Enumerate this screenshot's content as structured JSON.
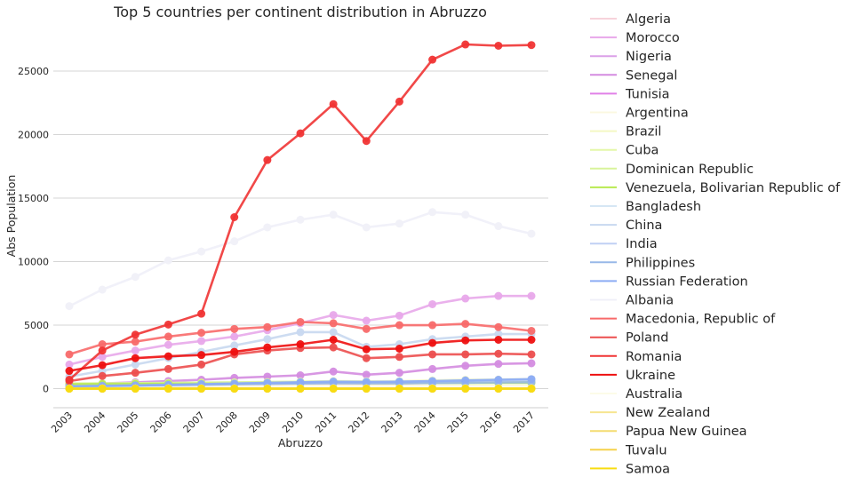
{
  "chart_data": {
    "type": "line",
    "title": "Top 5 countries per continent distribution in Abruzzo",
    "xlabel": "Abruzzo",
    "ylabel": "Abs Population",
    "categories": [
      "2003",
      "2004",
      "2005",
      "2006",
      "2007",
      "2008",
      "2009",
      "2010",
      "2011",
      "2012",
      "2013",
      "2014",
      "2015",
      "2016",
      "2017"
    ],
    "ylim": [
      -1500,
      28500
    ],
    "yticks": [
      0,
      5000,
      10000,
      15000,
      20000,
      25000
    ],
    "grid": "horizontal",
    "legend_position": "right",
    "series": [
      {
        "name": "Algeria",
        "color": "#f7d3db",
        "values": [
          250,
          270,
          290,
          300,
          320,
          350,
          380,
          400,
          450,
          420,
          430,
          460,
          480,
          500,
          520
        ]
      },
      {
        "name": "Morocco",
        "color": "#e8a8ea",
        "values": [
          1900,
          2500,
          3000,
          3450,
          3750,
          4100,
          4600,
          5150,
          5800,
          5350,
          5750,
          6650,
          7100,
          7300,
          7300
        ]
      },
      {
        "name": "Nigeria",
        "color": "#dca0e8",
        "values": [
          100,
          120,
          150,
          180,
          220,
          250,
          300,
          350,
          400,
          380,
          400,
          450,
          500,
          550,
          600
        ]
      },
      {
        "name": "Senegal",
        "color": "#d48ce0",
        "values": [
          300,
          400,
          500,
          600,
          700,
          850,
          950,
          1050,
          1350,
          1100,
          1250,
          1550,
          1800,
          1950,
          2000
        ]
      },
      {
        "name": "Tunisia",
        "color": "#e080e8",
        "values": [
          150,
          180,
          220,
          260,
          300,
          350,
          400,
          450,
          500,
          480,
          500,
          550,
          600,
          650,
          700
        ]
      },
      {
        "name": "Argentina",
        "color": "#fbf8e0",
        "values": [
          150,
          170,
          190,
          200,
          210,
          220,
          230,
          240,
          250,
          240,
          240,
          250,
          250,
          250,
          250
        ]
      },
      {
        "name": "Brazil",
        "color": "#f4f8c4",
        "values": [
          200,
          260,
          300,
          350,
          400,
          450,
          500,
          550,
          600,
          580,
          600,
          650,
          700,
          720,
          750
        ]
      },
      {
        "name": "Cuba",
        "color": "#e4f7a8",
        "values": [
          300,
          330,
          360,
          380,
          400,
          420,
          440,
          460,
          480,
          470,
          470,
          480,
          490,
          490,
          500
        ]
      },
      {
        "name": "Dominican Republic",
        "color": "#d8f39a",
        "values": [
          400,
          420,
          440,
          460,
          480,
          500,
          520,
          540,
          560,
          540,
          540,
          550,
          560,
          560,
          570
        ]
      },
      {
        "name": "Venezuela, Bolivarian Republic of",
        "color": "#b8ea50",
        "values": [
          350,
          360,
          370,
          380,
          390,
          400,
          420,
          440,
          460,
          440,
          440,
          450,
          450,
          460,
          460
        ]
      },
      {
        "name": "Bangladesh",
        "color": "#d6e6f4",
        "values": [
          100,
          150,
          200,
          250,
          300,
          350,
          400,
          450,
          500,
          480,
          500,
          550,
          600,
          650,
          700
        ]
      },
      {
        "name": "China",
        "color": "#c8d8f0",
        "values": [
          950,
          1400,
          1900,
          2400,
          2900,
          3400,
          3900,
          4450,
          4450,
          3300,
          3500,
          3900,
          4100,
          4300,
          4300
        ]
      },
      {
        "name": "India",
        "color": "#c0d0f4",
        "values": [
          150,
          200,
          250,
          300,
          350,
          400,
          450,
          500,
          550,
          520,
          540,
          580,
          620,
          660,
          700
        ]
      },
      {
        "name": "Philippines",
        "color": "#98b8e8",
        "values": [
          200,
          230,
          260,
          290,
          320,
          350,
          380,
          410,
          440,
          420,
          430,
          450,
          470,
          490,
          510
        ]
      },
      {
        "name": "Russian Federation",
        "color": "#8cacf4",
        "values": [
          150,
          200,
          250,
          300,
          350,
          400,
          450,
          500,
          550,
          530,
          550,
          600,
          650,
          700,
          750
        ]
      },
      {
        "name": "Albania",
        "color": "#f0f0f8",
        "values": [
          6500,
          7800,
          8800,
          10100,
          10800,
          11600,
          12700,
          13300,
          13700,
          12700,
          13000,
          13900,
          13700,
          12800,
          12200
        ]
      },
      {
        "name": "Macedonia, Republic of",
        "color": "#f86a6a",
        "values": [
          2700,
          3500,
          3700,
          4100,
          4400,
          4700,
          4850,
          5250,
          5150,
          4700,
          5000,
          5000,
          5100,
          4850,
          4550
        ]
      },
      {
        "name": "Poland",
        "color": "#ec4e4e",
        "values": [
          600,
          1000,
          1250,
          1550,
          1900,
          2700,
          3000,
          3200,
          3250,
          2400,
          2500,
          2700,
          2700,
          2750,
          2700
        ]
      },
      {
        "name": "Romania",
        "color": "#f03434",
        "values": [
          700,
          3000,
          4250,
          5050,
          5900,
          13500,
          18000,
          20100,
          22400,
          19500,
          22600,
          25900,
          27100,
          27000,
          27050
        ]
      },
      {
        "name": "Ukraine",
        "color": "#ee1010",
        "values": [
          1400,
          1850,
          2400,
          2550,
          2650,
          2900,
          3250,
          3500,
          3850,
          3100,
          3150,
          3600,
          3800,
          3850,
          3850
        ]
      },
      {
        "name": "Australia",
        "color": "#fcfbe8",
        "values": [
          20,
          22,
          24,
          26,
          28,
          30,
          32,
          34,
          36,
          34,
          34,
          36,
          36,
          36,
          36
        ]
      },
      {
        "name": "New Zealand",
        "color": "#f6e590",
        "values": [
          10,
          11,
          12,
          13,
          14,
          15,
          16,
          17,
          18,
          17,
          17,
          18,
          18,
          18,
          18
        ]
      },
      {
        "name": "Papua New Guinea",
        "color": "#f4dc70",
        "values": [
          2,
          2,
          2,
          2,
          2,
          2,
          2,
          2,
          2,
          2,
          2,
          2,
          2,
          2,
          2
        ]
      },
      {
        "name": "Tuvalu",
        "color": "#f6d24a",
        "values": [
          1,
          1,
          1,
          1,
          1,
          1,
          1,
          1,
          1,
          1,
          1,
          1,
          1,
          1,
          1
        ]
      },
      {
        "name": "Samoa",
        "color": "#f8dc10",
        "values": [
          0,
          0,
          0,
          0,
          0,
          0,
          0,
          0,
          0,
          0,
          0,
          0,
          0,
          0,
          0
        ]
      }
    ]
  }
}
